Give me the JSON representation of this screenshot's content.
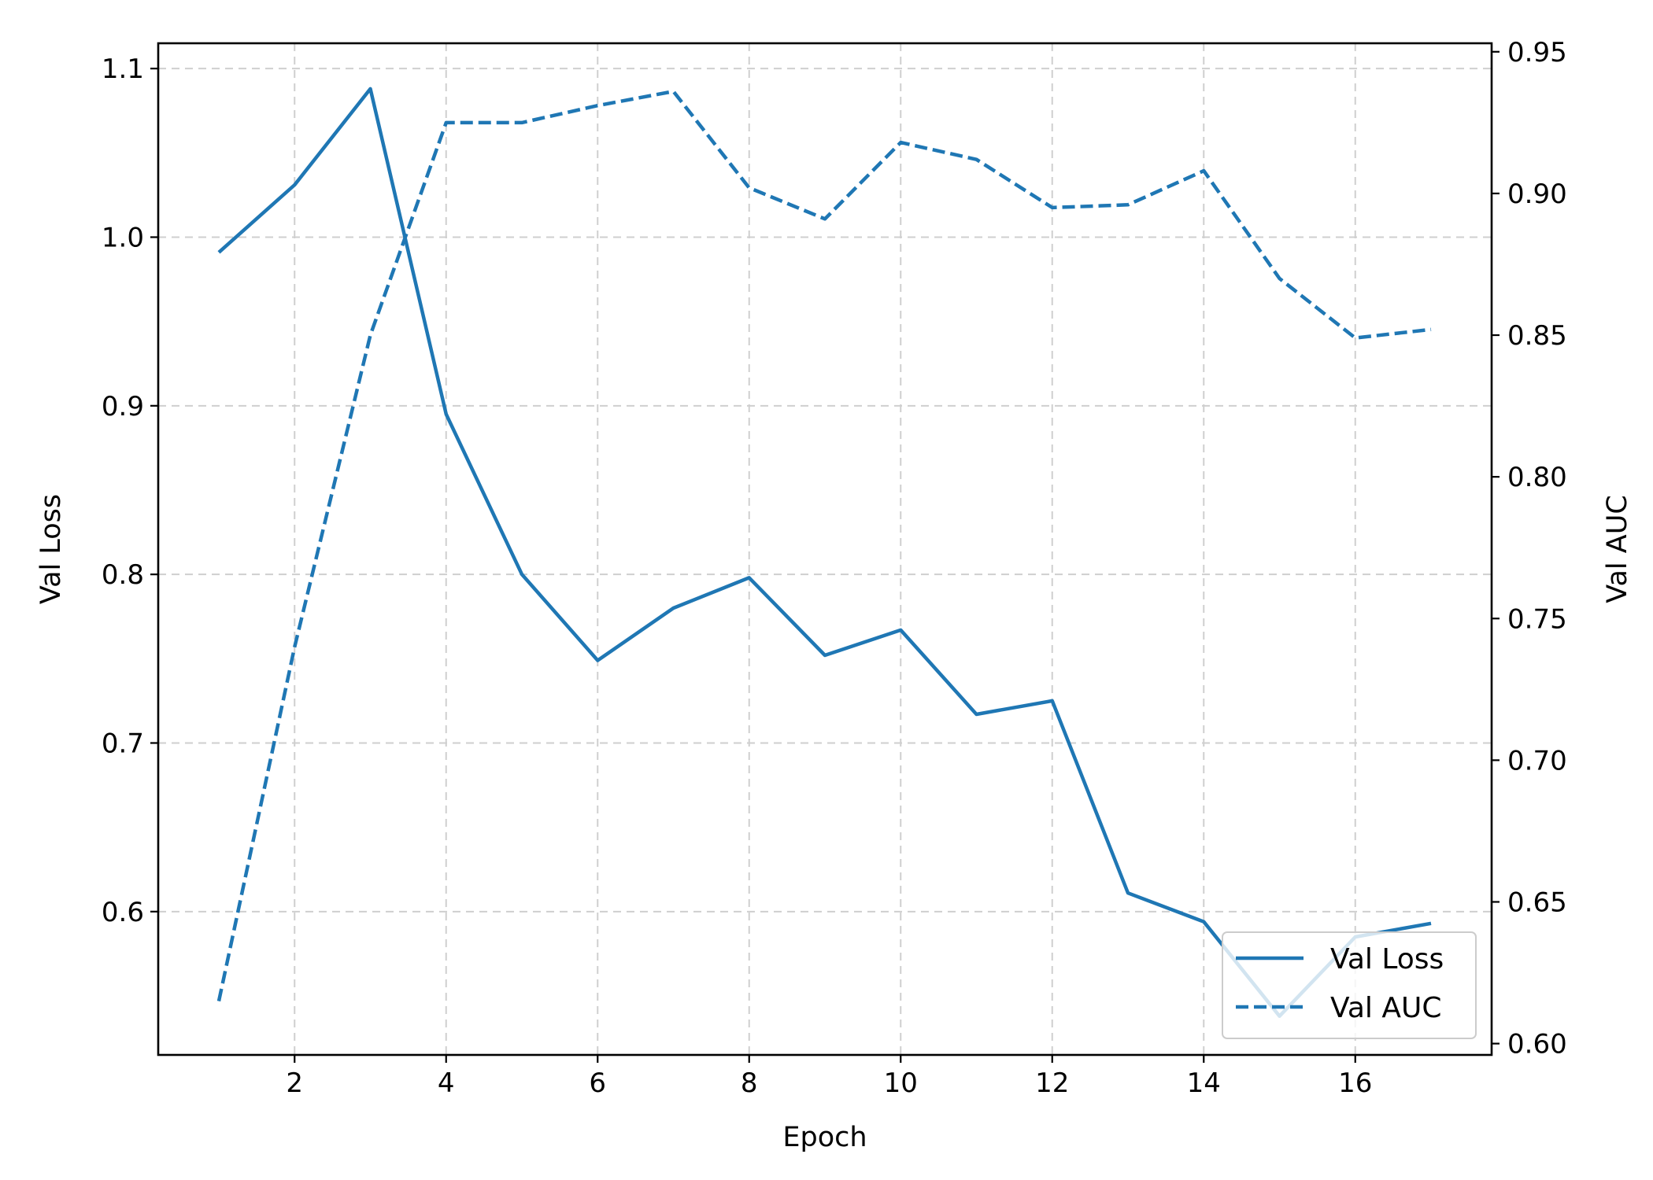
{
  "chart_data": {
    "type": "line",
    "title": "",
    "xlabel": "Epoch",
    "ylabel_left": "Val Loss",
    "ylabel_right": "Val AUC",
    "x": [
      1,
      2,
      3,
      4,
      5,
      6,
      7,
      8,
      9,
      10,
      11,
      12,
      13,
      14,
      15,
      16,
      17
    ],
    "xlim": [
      0.2,
      17.8
    ],
    "xticks": [
      2,
      4,
      6,
      8,
      10,
      12,
      14,
      16
    ],
    "ylim_left": [
      0.515,
      1.115
    ],
    "yticks_left": [
      0.6,
      0.7,
      0.8,
      0.9,
      1.0,
      1.1
    ],
    "yticks_left_labels": [
      "0.6",
      "0.7",
      "0.8",
      "0.9",
      "1.0",
      "1.1"
    ],
    "ylim_right": [
      0.596,
      0.953
    ],
    "yticks_right": [
      0.6,
      0.65,
      0.7,
      0.75,
      0.8,
      0.85,
      0.9,
      0.95
    ],
    "yticks_right_labels": [
      "0.60",
      "0.65",
      "0.70",
      "0.75",
      "0.80",
      "0.85",
      "0.90",
      "0.95"
    ],
    "grid": true,
    "legend_position": "lower-right",
    "series": [
      {
        "name": "Val Loss",
        "axis": "left",
        "style": "solid",
        "color": "#1f77b4",
        "values": [
          0.991,
          1.031,
          1.088,
          0.895,
          0.8,
          0.749,
          0.78,
          0.798,
          0.752,
          0.767,
          0.717,
          0.725,
          0.611,
          0.594,
          0.538,
          0.585,
          0.593
        ]
      },
      {
        "name": "Val AUC",
        "axis": "right",
        "style": "dashed",
        "color": "#1f77b4",
        "values": [
          0.615,
          0.74,
          0.85,
          0.925,
          0.925,
          0.931,
          0.936,
          0.902,
          0.891,
          0.918,
          0.912,
          0.895,
          0.896,
          0.908,
          0.87,
          0.849,
          0.852
        ]
      }
    ]
  }
}
